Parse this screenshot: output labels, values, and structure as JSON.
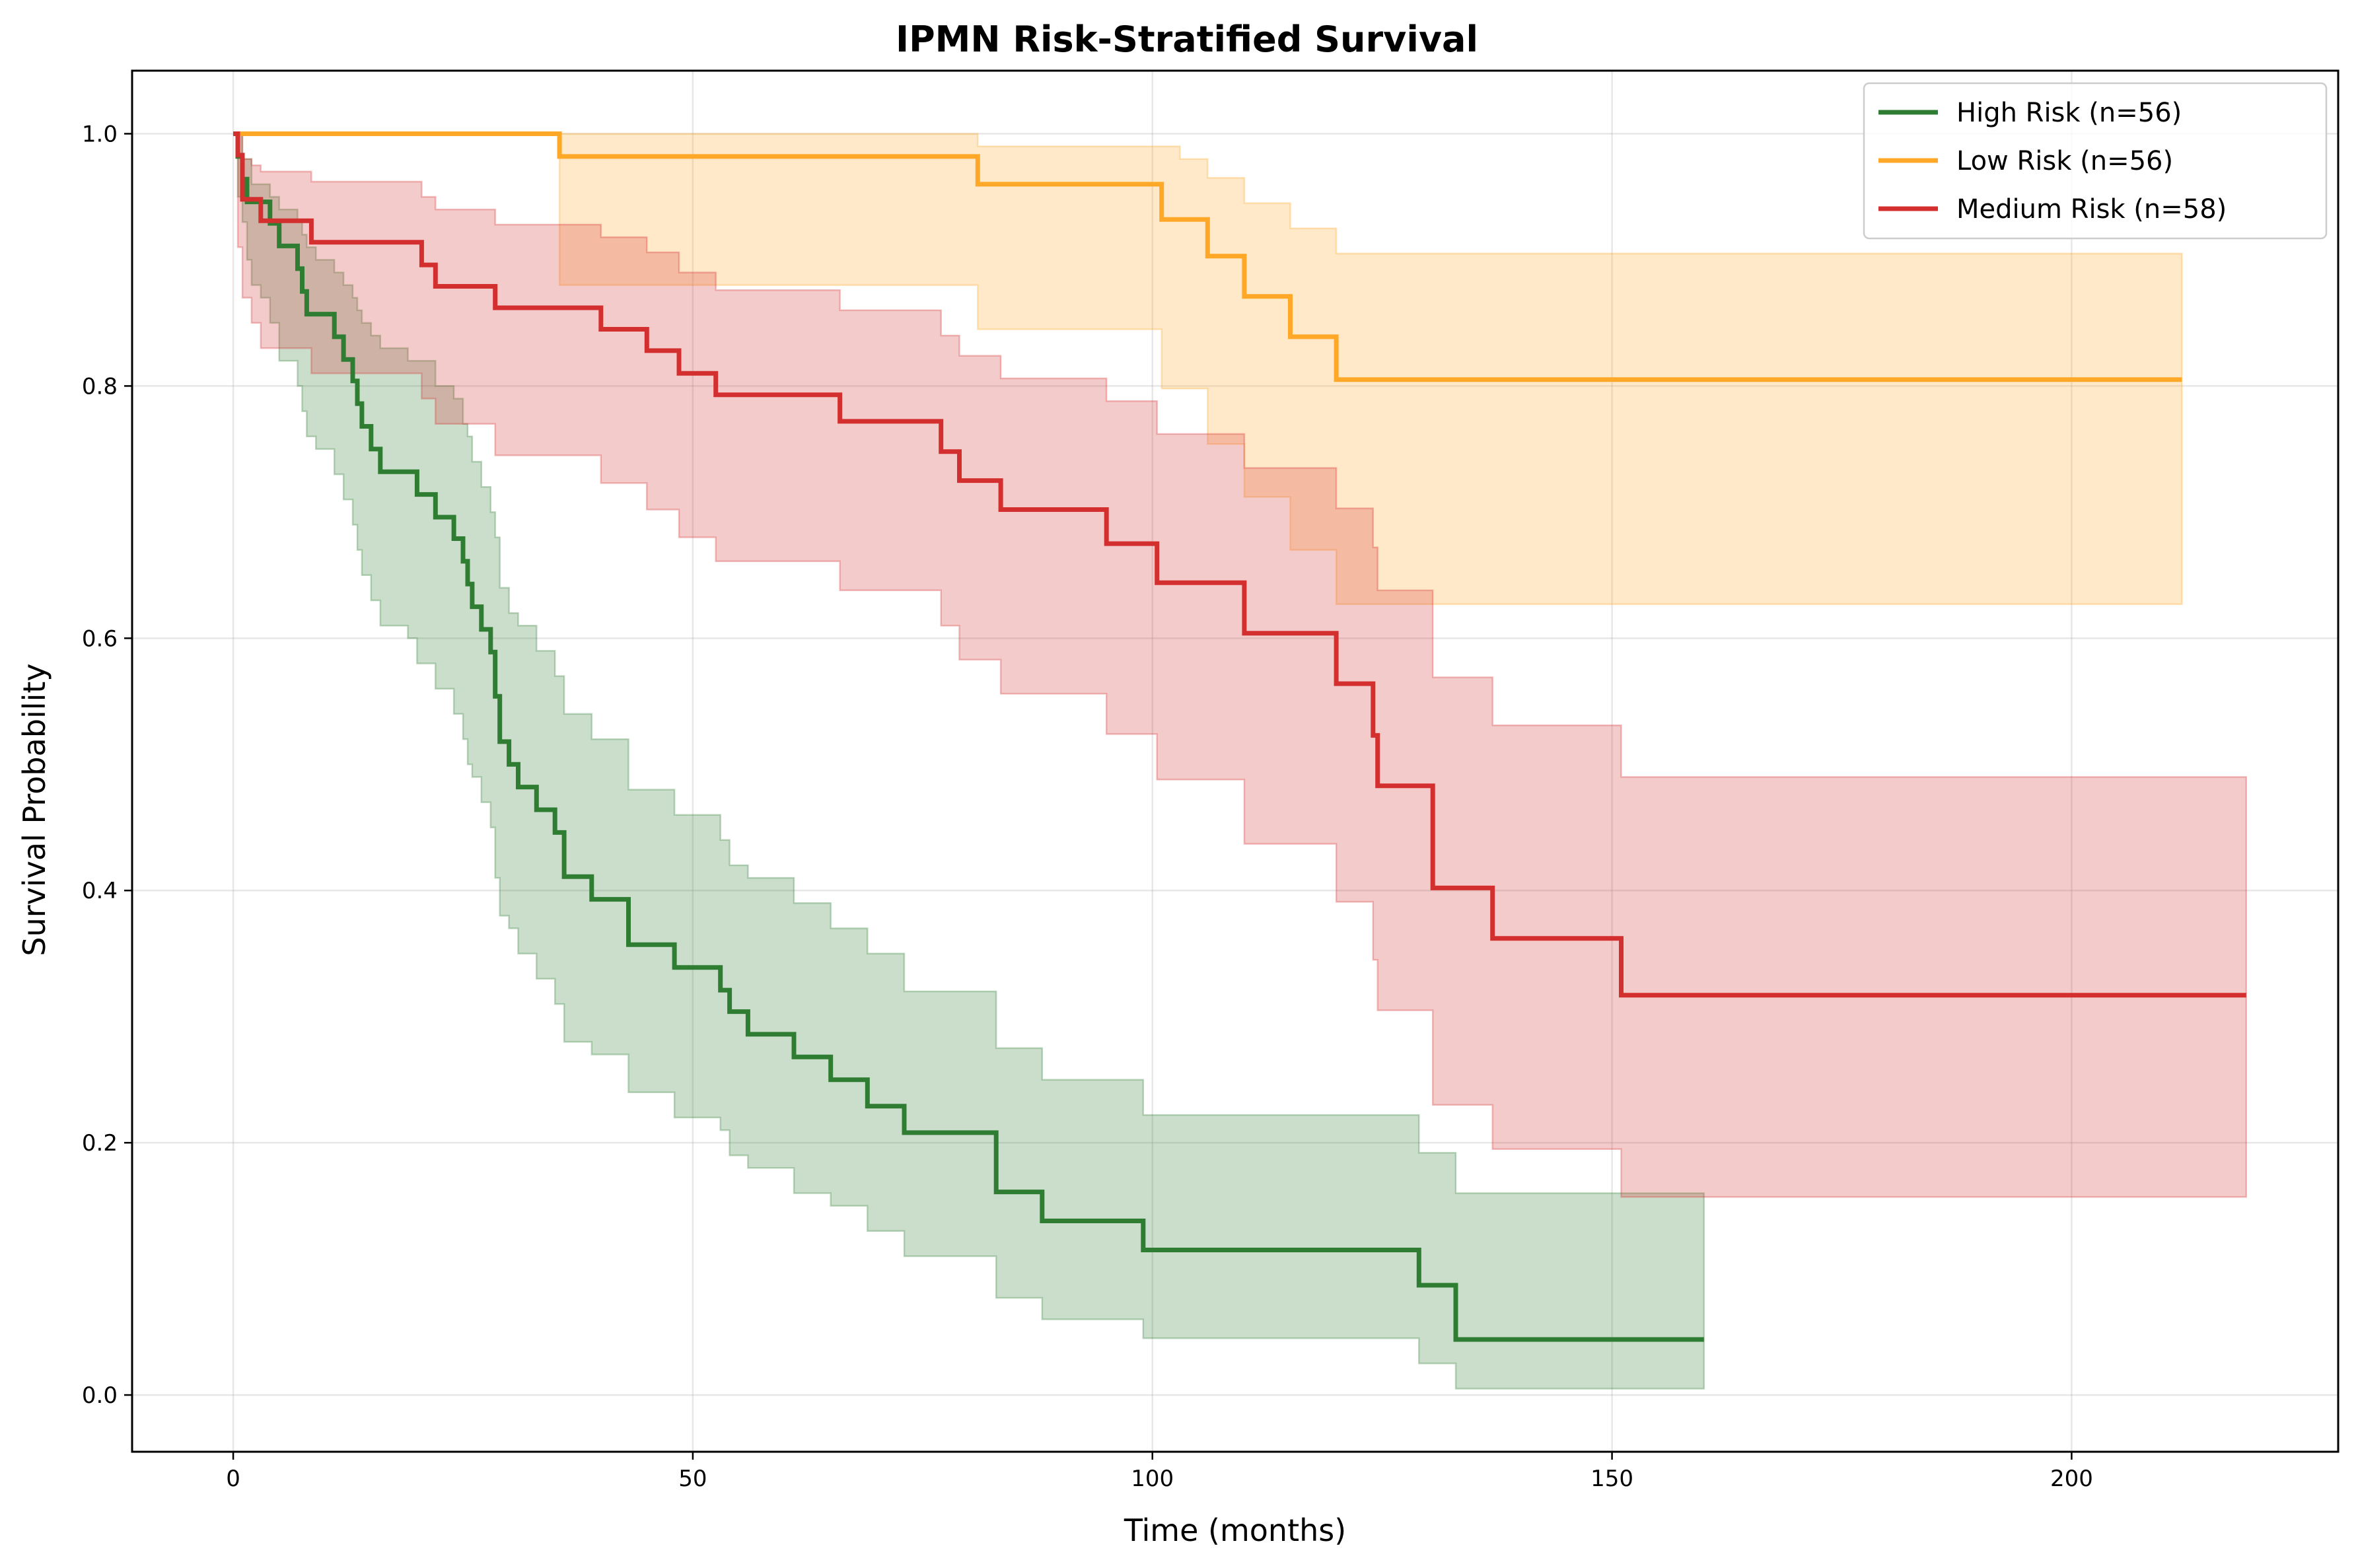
{
  "chart_data": {
    "type": "line",
    "title": "IPMN Risk-Stratified Survival",
    "xlabel": "Time (months)",
    "ylabel": "Survival Probability",
    "xlim": [
      -11,
      229
    ],
    "ylim": [
      -0.045,
      1.05
    ],
    "xticks": [
      0,
      50,
      100,
      150,
      200
    ],
    "yticks": [
      0.0,
      0.2,
      0.4,
      0.6,
      0.8,
      1.0
    ],
    "xtick_labels": [
      "0",
      "50",
      "100",
      "150",
      "200"
    ],
    "ytick_labels": [
      "0.0",
      "0.2",
      "0.4",
      "0.6",
      "0.8",
      "1.0"
    ],
    "grid": true,
    "legend_position": "top-right",
    "series": [
      {
        "name": "High Risk (n=56)",
        "color": "#2e7d32",
        "step": "post",
        "x": [
          0,
          0.5,
          1,
          1.5,
          2,
          3,
          4,
          5,
          7,
          7.5,
          8,
          9,
          11,
          12,
          13,
          13.5,
          14,
          15,
          16,
          19,
          20,
          22,
          24,
          25,
          25.5,
          26,
          27,
          28,
          28.5,
          29,
          30,
          31,
          33,
          35,
          36,
          39,
          43,
          48,
          53,
          54,
          56,
          61,
          65,
          69,
          73,
          83,
          88,
          99,
          129,
          133,
          160
        ],
        "y": [
          1.0,
          0.982,
          0.964,
          0.946,
          0.946,
          0.946,
          0.929,
          0.911,
          0.893,
          0.875,
          0.857,
          0.857,
          0.839,
          0.821,
          0.804,
          0.786,
          0.768,
          0.75,
          0.732,
          0.732,
          0.714,
          0.696,
          0.679,
          0.661,
          0.643,
          0.625,
          0.607,
          0.589,
          0.554,
          0.518,
          0.5,
          0.482,
          0.464,
          0.446,
          0.411,
          0.393,
          0.357,
          0.339,
          0.321,
          0.304,
          0.286,
          0.268,
          0.25,
          0.229,
          0.208,
          0.161,
          0.138,
          0.115,
          0.087,
          0.044,
          0.044
        ],
        "ci_lower": [
          1.0,
          0.95,
          0.93,
          0.9,
          0.88,
          0.87,
          0.85,
          0.82,
          0.8,
          0.78,
          0.76,
          0.75,
          0.73,
          0.71,
          0.69,
          0.67,
          0.65,
          0.63,
          0.61,
          0.6,
          0.58,
          0.56,
          0.54,
          0.52,
          0.5,
          0.49,
          0.47,
          0.45,
          0.41,
          0.38,
          0.37,
          0.35,
          0.33,
          0.31,
          0.28,
          0.27,
          0.24,
          0.22,
          0.21,
          0.19,
          0.18,
          0.16,
          0.15,
          0.13,
          0.11,
          0.077,
          0.06,
          0.045,
          0.025,
          0.005,
          0.005
        ],
        "ci_upper": [
          1.0,
          1.0,
          0.98,
          0.98,
          0.96,
          0.96,
          0.95,
          0.94,
          0.93,
          0.92,
          0.91,
          0.9,
          0.89,
          0.88,
          0.87,
          0.86,
          0.85,
          0.84,
          0.83,
          0.82,
          0.82,
          0.8,
          0.79,
          0.77,
          0.76,
          0.74,
          0.72,
          0.7,
          0.68,
          0.64,
          0.62,
          0.61,
          0.59,
          0.57,
          0.54,
          0.52,
          0.48,
          0.46,
          0.44,
          0.42,
          0.41,
          0.39,
          0.37,
          0.35,
          0.32,
          0.275,
          0.25,
          0.222,
          0.192,
          0.16,
          0.16
        ]
      },
      {
        "name": "Low Risk (n=56)",
        "color": "#ffa726",
        "step": "post",
        "x": [
          0,
          35.5,
          81,
          101,
          103,
          106,
          110,
          115,
          120,
          212
        ],
        "y": [
          1.0,
          0.982,
          0.96,
          0.932,
          0.932,
          0.903,
          0.871,
          0.839,
          0.805,
          0.805
        ],
        "ci_lower": [
          1.0,
          0.88,
          0.845,
          0.798,
          0.798,
          0.754,
          0.712,
          0.67,
          0.627,
          0.627
        ],
        "ci_upper": [
          1.0,
          1.0,
          0.99,
          0.99,
          0.98,
          0.965,
          0.945,
          0.925,
          0.905,
          0.905
        ]
      },
      {
        "name": "Medium Risk (n=58)",
        "color": "#d32f2f",
        "step": "post",
        "x": [
          0,
          0.5,
          1,
          2,
          3,
          8.5,
          20.5,
          22,
          28.5,
          40,
          45,
          48.5,
          52.5,
          66,
          77,
          79,
          83.5,
          95,
          100.5,
          110,
          120,
          124,
          124.5,
          130.5,
          137,
          151,
          219
        ],
        "y": [
          1.0,
          0.983,
          0.948,
          0.948,
          0.931,
          0.914,
          0.896,
          0.879,
          0.862,
          0.845,
          0.828,
          0.81,
          0.793,
          0.772,
          0.748,
          0.725,
          0.702,
          0.675,
          0.644,
          0.604,
          0.564,
          0.523,
          0.483,
          0.402,
          0.362,
          0.317,
          0.317
        ],
        "ci_lower": [
          1.0,
          0.91,
          0.87,
          0.85,
          0.83,
          0.81,
          0.79,
          0.77,
          0.745,
          0.723,
          0.702,
          0.68,
          0.661,
          0.638,
          0.61,
          0.583,
          0.556,
          0.524,
          0.488,
          0.437,
          0.391,
          0.345,
          0.305,
          0.23,
          0.195,
          0.157,
          0.157
        ],
        "ci_upper": [
          1.0,
          1.0,
          0.98,
          0.975,
          0.97,
          0.962,
          0.95,
          0.94,
          0.928,
          0.918,
          0.906,
          0.89,
          0.876,
          0.86,
          0.84,
          0.824,
          0.806,
          0.788,
          0.762,
          0.735,
          0.703,
          0.672,
          0.638,
          0.569,
          0.531,
          0.49,
          0.49
        ]
      }
    ]
  }
}
